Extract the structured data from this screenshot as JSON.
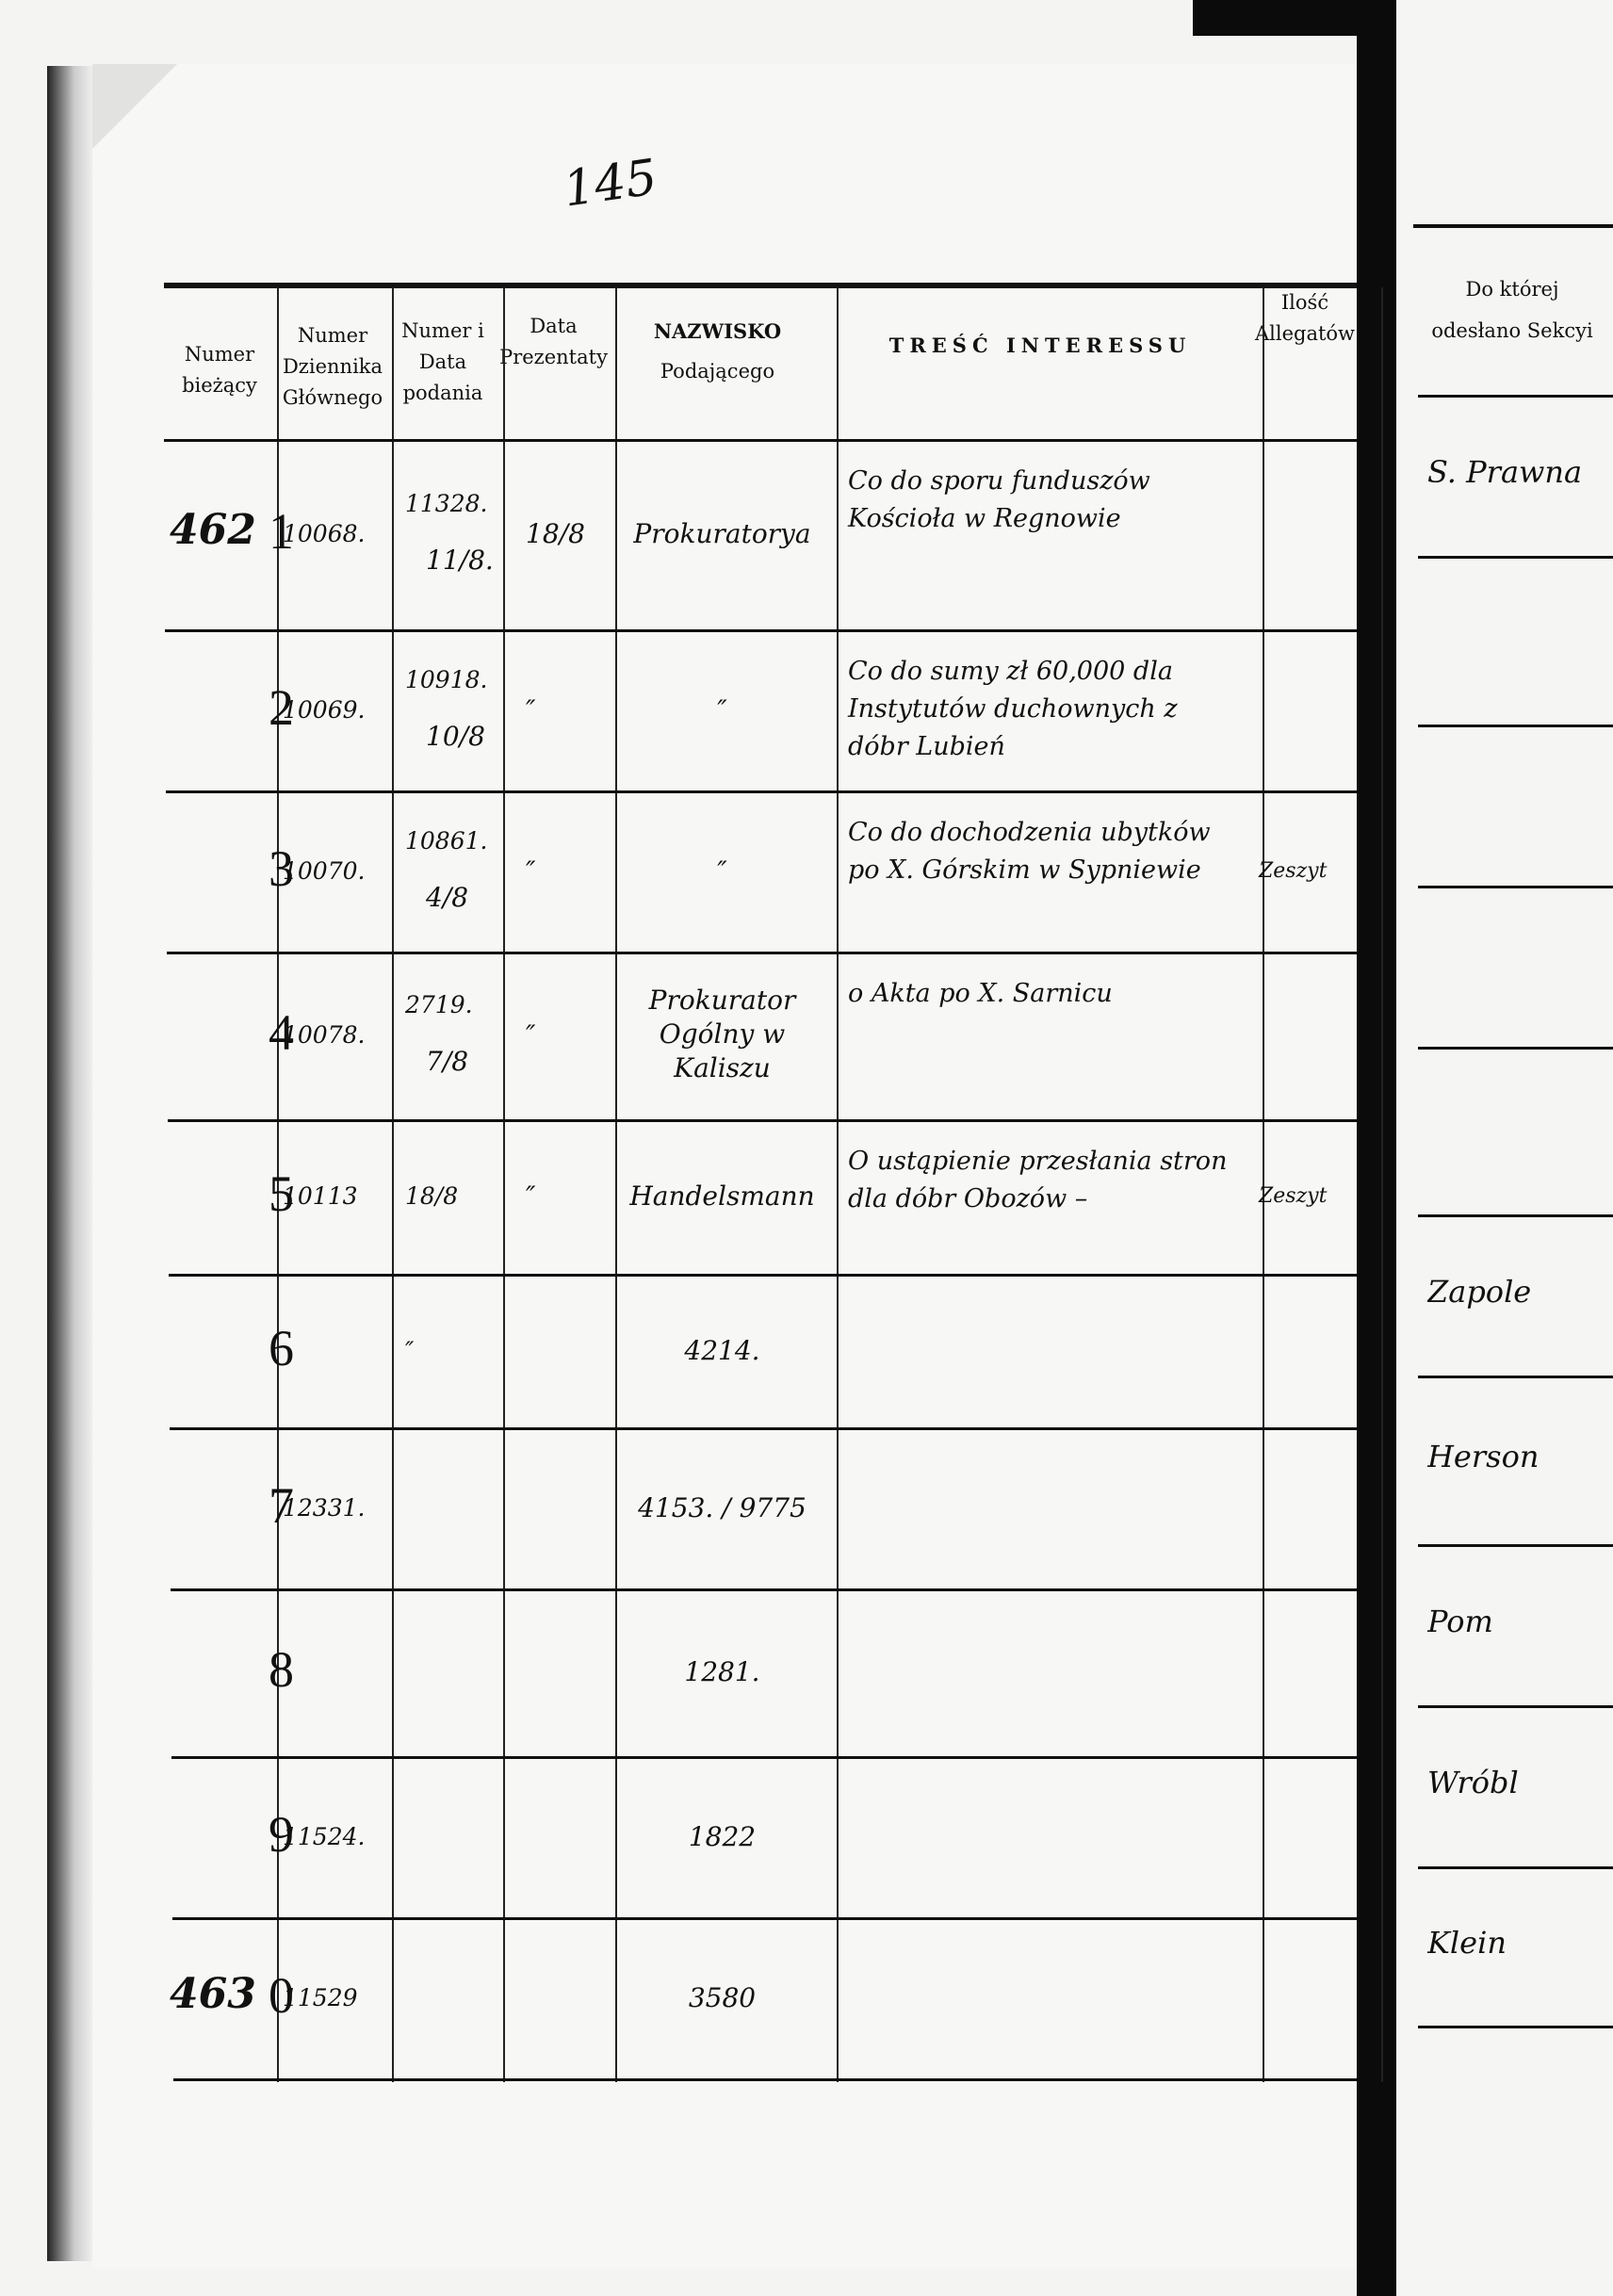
{
  "page_number": "145",
  "headers": {
    "numer_biezacy": "Numer bieżący",
    "numer_dziennika": "Numer Dziennika Głównego",
    "numer_data_podania": "Numer i Data podania",
    "data_prezentaty": "Data Prezentaty",
    "nazwisko": "NAZWISKO",
    "nazwisko_sub": "Podającego",
    "tresc": "TREŚĆ INTERESSU",
    "ilosc": "Ilość Allegatów",
    "sekcja": "Do której odesłano Sekcyi"
  },
  "rows": [
    {
      "margin": "462",
      "num": "1",
      "dziennik": "10068.",
      "podanie": "11328.",
      "podanie_data": "11/8.",
      "prezentata": "18/8",
      "nazwisko": "Prokuratorya",
      "tresc": "Co do sporu funduszów Kościoła w Regnowie",
      "ilosc": ""
    },
    {
      "margin": "",
      "num": "2",
      "dziennik": "10069.",
      "podanie": "10918.",
      "podanie_data": "10/8",
      "prezentata": "″",
      "nazwisko": "″",
      "tresc": "Co do sumy zł 60,000 dla Instytutów duchownych z dóbr Lubień",
      "ilosc": ""
    },
    {
      "margin": "",
      "num": "3",
      "dziennik": "10070.",
      "podanie": "10861.",
      "podanie_data": "4/8",
      "prezentata": "″",
      "nazwisko": "″",
      "tresc": "Co do dochodzenia ubytków po X. Górskim w Sypniewie",
      "ilosc": "Zeszyt"
    },
    {
      "margin": "",
      "num": "4",
      "dziennik": "10078.",
      "podanie": "2719.",
      "podanie_data": "7/8",
      "prezentata": "″",
      "nazwisko": "Prokurator Ogólny w Kaliszu",
      "tresc": "o Akta po X. Sarnicu",
      "ilosc": ""
    },
    {
      "margin": "",
      "num": "5",
      "dziennik": "10113",
      "podanie": "18/8",
      "podanie_data": "",
      "prezentata": "″",
      "nazwisko": "Handelsmann",
      "tresc": "O ustąpienie przesłania stron dla dóbr Obozów –",
      "ilosc": "Zeszyt"
    },
    {
      "margin": "",
      "num": "6",
      "dziennik": "",
      "podanie": "″",
      "podanie_data": "",
      "prezentata": "",
      "nazwisko": "4214.",
      "tresc": "",
      "ilosc": ""
    },
    {
      "margin": "",
      "num": "7",
      "dziennik": "12331.",
      "podanie": "",
      "podanie_data": "",
      "prezentata": "",
      "nazwisko": "4153. / 9775",
      "tresc": "",
      "ilosc": ""
    },
    {
      "margin": "",
      "num": "8",
      "dziennik": "",
      "podanie": "",
      "podanie_data": "",
      "prezentata": "",
      "nazwisko": "1281.",
      "tresc": "",
      "ilosc": ""
    },
    {
      "margin": "",
      "num": "9",
      "dziennik": "11524.",
      "podanie": "",
      "podanie_data": "",
      "prezentata": "",
      "nazwisko": "1822",
      "tresc": "",
      "ilosc": ""
    },
    {
      "margin": "463",
      "num": "0",
      "dziennik": "11529",
      "podanie": "",
      "podanie_data": "",
      "prezentata": "",
      "nazwisko": "3580",
      "tresc": "",
      "ilosc": ""
    }
  ],
  "right_page": [
    "S. Prawna",
    "",
    "",
    "",
    "",
    "Zapole",
    "Herson",
    "Pom",
    "Wróbl",
    "Klein"
  ]
}
